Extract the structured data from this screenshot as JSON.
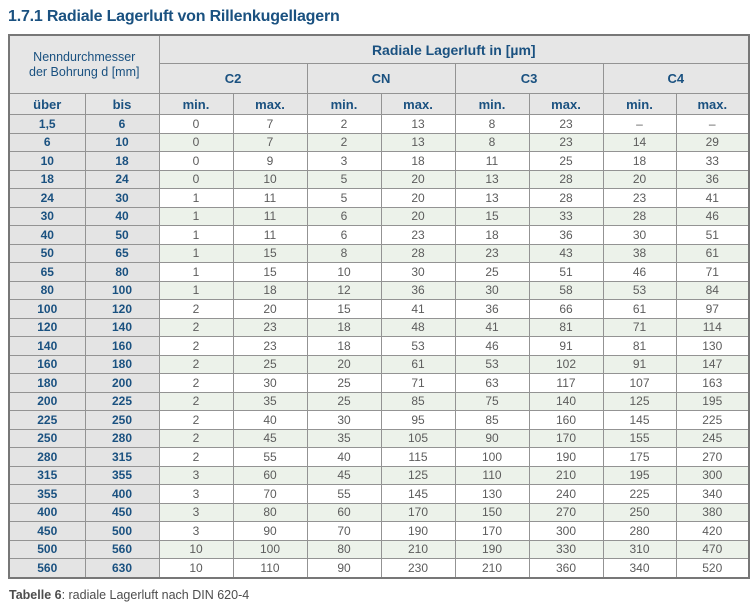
{
  "page": {
    "title": "1.7.1 Radiale Lagerluft von Rillenkugellagern"
  },
  "table": {
    "corner_line1": "Nenndurchmesser",
    "corner_line2": "der Bohrung d [mm]",
    "main_header": "Radiale Lagerluft in [µm]",
    "groups": [
      "C2",
      "CN",
      "C3",
      "C4"
    ],
    "col_headers": [
      "über",
      "bis"
    ],
    "sub": [
      "min.",
      "max."
    ],
    "rows": [
      [
        "1,5",
        "6",
        "0",
        "7",
        "2",
        "13",
        "8",
        "23",
        "–",
        "–"
      ],
      [
        "6",
        "10",
        "0",
        "7",
        "2",
        "13",
        "8",
        "23",
        "14",
        "29"
      ],
      [
        "10",
        "18",
        "0",
        "9",
        "3",
        "18",
        "11",
        "25",
        "18",
        "33"
      ],
      [
        "18",
        "24",
        "0",
        "10",
        "5",
        "20",
        "13",
        "28",
        "20",
        "36"
      ],
      [
        "24",
        "30",
        "1",
        "11",
        "5",
        "20",
        "13",
        "28",
        "23",
        "41"
      ],
      [
        "30",
        "40",
        "1",
        "11",
        "6",
        "20",
        "15",
        "33",
        "28",
        "46"
      ],
      [
        "40",
        "50",
        "1",
        "11",
        "6",
        "23",
        "18",
        "36",
        "30",
        "51"
      ],
      [
        "50",
        "65",
        "1",
        "15",
        "8",
        "28",
        "23",
        "43",
        "38",
        "61"
      ],
      [
        "65",
        "80",
        "1",
        "15",
        "10",
        "30",
        "25",
        "51",
        "46",
        "71"
      ],
      [
        "80",
        "100",
        "1",
        "18",
        "12",
        "36",
        "30",
        "58",
        "53",
        "84"
      ],
      [
        "100",
        "120",
        "2",
        "20",
        "15",
        "41",
        "36",
        "66",
        "61",
        "97"
      ],
      [
        "120",
        "140",
        "2",
        "23",
        "18",
        "48",
        "41",
        "81",
        "71",
        "114"
      ],
      [
        "140",
        "160",
        "2",
        "23",
        "18",
        "53",
        "46",
        "91",
        "81",
        "130"
      ],
      [
        "160",
        "180",
        "2",
        "25",
        "20",
        "61",
        "53",
        "102",
        "91",
        "147"
      ],
      [
        "180",
        "200",
        "2",
        "30",
        "25",
        "71",
        "63",
        "117",
        "107",
        "163"
      ],
      [
        "200",
        "225",
        "2",
        "35",
        "25",
        "85",
        "75",
        "140",
        "125",
        "195"
      ],
      [
        "225",
        "250",
        "2",
        "40",
        "30",
        "95",
        "85",
        "160",
        "145",
        "225"
      ],
      [
        "250",
        "280",
        "2",
        "45",
        "35",
        "105",
        "90",
        "170",
        "155",
        "245"
      ],
      [
        "280",
        "315",
        "2",
        "55",
        "40",
        "115",
        "100",
        "190",
        "175",
        "270"
      ],
      [
        "315",
        "355",
        "3",
        "60",
        "45",
        "125",
        "110",
        "210",
        "195",
        "300"
      ],
      [
        "355",
        "400",
        "3",
        "70",
        "55",
        "145",
        "130",
        "240",
        "225",
        "340"
      ],
      [
        "400",
        "450",
        "3",
        "80",
        "60",
        "170",
        "150",
        "270",
        "250",
        "380"
      ],
      [
        "450",
        "500",
        "3",
        "90",
        "70",
        "190",
        "170",
        "300",
        "280",
        "420"
      ],
      [
        "500",
        "560",
        "10",
        "100",
        "80",
        "210",
        "190",
        "330",
        "310",
        "470"
      ],
      [
        "560",
        "630",
        "10",
        "110",
        "90",
        "230",
        "210",
        "360",
        "340",
        "520"
      ]
    ]
  },
  "caption": {
    "bold": "Tabelle 6",
    "rest": ": radiale Lagerluft nach DIN 620-4"
  },
  "colors": {
    "accent_blue": "#1a5180",
    "header_bg": "#e6e6e6",
    "rowhead_bg": "#e4e4e4",
    "stripe_green": "#ecf2ea",
    "border_gray": "#939393",
    "value_text": "#5c5c5c",
    "caption_text": "#4d4d4d"
  }
}
